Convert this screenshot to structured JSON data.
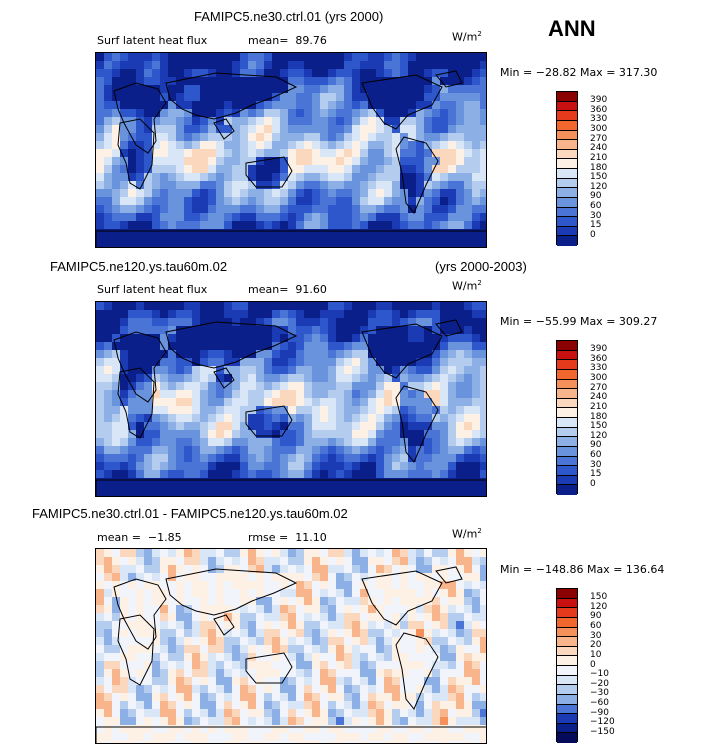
{
  "season": "ANN",
  "units": "W/m",
  "units_exp": "2",
  "panels": [
    {
      "title": "FAMIPC5.ne30.ctrl.01 (yrs 2000)",
      "variable": "Surf latent heat flux",
      "mean_label": "mean=",
      "mean_value": "89.76",
      "min_label": "Min =",
      "min_value": "−28.82",
      "max_label": "Max =",
      "max_value": "317.30",
      "levels": [
        "390",
        "360",
        "330",
        "300",
        "270",
        "240",
        "210",
        "180",
        "150",
        "120",
        "90",
        "60",
        "30",
        "15",
        "0"
      ],
      "colors": [
        "#8b0000",
        "#c81010",
        "#e53a1c",
        "#f2672e",
        "#f5905a",
        "#f8b48a",
        "#fad7bd",
        "#fdf1e6",
        "#d9e6f7",
        "#b4cdee",
        "#8cb0e6",
        "#6a93de",
        "#4a75d6",
        "#2f57cc",
        "#1a3bb3",
        "#0b1f8a"
      ]
    },
    {
      "title_left": "FAMIPC5.ne120.ys.tau60m.02",
      "title_right": "(yrs 2000-2003)",
      "variable": "Surf latent heat flux",
      "mean_label": "mean=",
      "mean_value": "91.60",
      "min_label": "Min =",
      "min_value": "−55.99",
      "max_label": "Max =",
      "max_value": "309.27",
      "levels": [
        "390",
        "360",
        "330",
        "300",
        "270",
        "240",
        "210",
        "180",
        "150",
        "120",
        "90",
        "60",
        "30",
        "15",
        "0"
      ],
      "colors": [
        "#8b0000",
        "#c81010",
        "#e53a1c",
        "#f2672e",
        "#f5905a",
        "#f8b48a",
        "#fad7bd",
        "#fdf1e6",
        "#d9e6f7",
        "#b4cdee",
        "#8cb0e6",
        "#6a93de",
        "#4a75d6",
        "#2f57cc",
        "#1a3bb3",
        "#0b1f8a"
      ]
    },
    {
      "title": "FAMIPC5.ne30.ctrl.01 - FAMIPC5.ne120.ys.tau60m.02",
      "mean_label": "mean =",
      "mean_value": "−1.85",
      "rmse_label": "rmse =",
      "rmse_value": "11.10",
      "min_label": "Min =",
      "min_value": "−148.86",
      "max_label": "Max =",
      "max_value": "136.64",
      "levels": [
        "150",
        "120",
        "90",
        "60",
        "30",
        "20",
        "10",
        "0",
        "−10",
        "−20",
        "−30",
        "−60",
        "−90",
        "−120",
        "−150"
      ],
      "colors": [
        "#8b0000",
        "#c81010",
        "#e53a1c",
        "#f2672e",
        "#f5905a",
        "#f8b48a",
        "#fad7bd",
        "#fdf1e6",
        "#f2f4fb",
        "#d9e6f7",
        "#b4cdee",
        "#8cb0e6",
        "#4a75d6",
        "#1a3bb3",
        "#0b1f8a",
        "#050a5a"
      ]
    }
  ],
  "chart_data": [
    {
      "type": "heatmap",
      "title": "FAMIPC5.ne30.ctrl.01 (yrs 2000)",
      "variable": "Surf latent heat flux",
      "units": "W/m2",
      "mean": 89.76,
      "min": -28.82,
      "max": 317.3,
      "contour_levels": [
        0,
        15,
        30,
        60,
        90,
        120,
        150,
        180,
        210,
        240,
        270,
        300,
        330,
        360,
        390
      ]
    },
    {
      "type": "heatmap",
      "title": "FAMIPC5.ne120.ys.tau60m.02",
      "years": "(yrs 2000-2003)",
      "variable": "Surf latent heat flux",
      "units": "W/m2",
      "mean": 91.6,
      "min": -55.99,
      "max": 309.27,
      "contour_levels": [
        0,
        15,
        30,
        60,
        90,
        120,
        150,
        180,
        210,
        240,
        270,
        300,
        330,
        360,
        390
      ]
    },
    {
      "type": "heatmap",
      "title": "FAMIPC5.ne30.ctrl.01 - FAMIPC5.ne120.ys.tau60m.02",
      "units": "W/m2",
      "mean": -1.85,
      "rmse": 11.1,
      "min": -148.86,
      "max": 136.64,
      "contour_levels": [
        -150,
        -120,
        -90,
        -60,
        -30,
        -20,
        -10,
        0,
        10,
        20,
        30,
        60,
        90,
        120,
        150
      ]
    }
  ]
}
